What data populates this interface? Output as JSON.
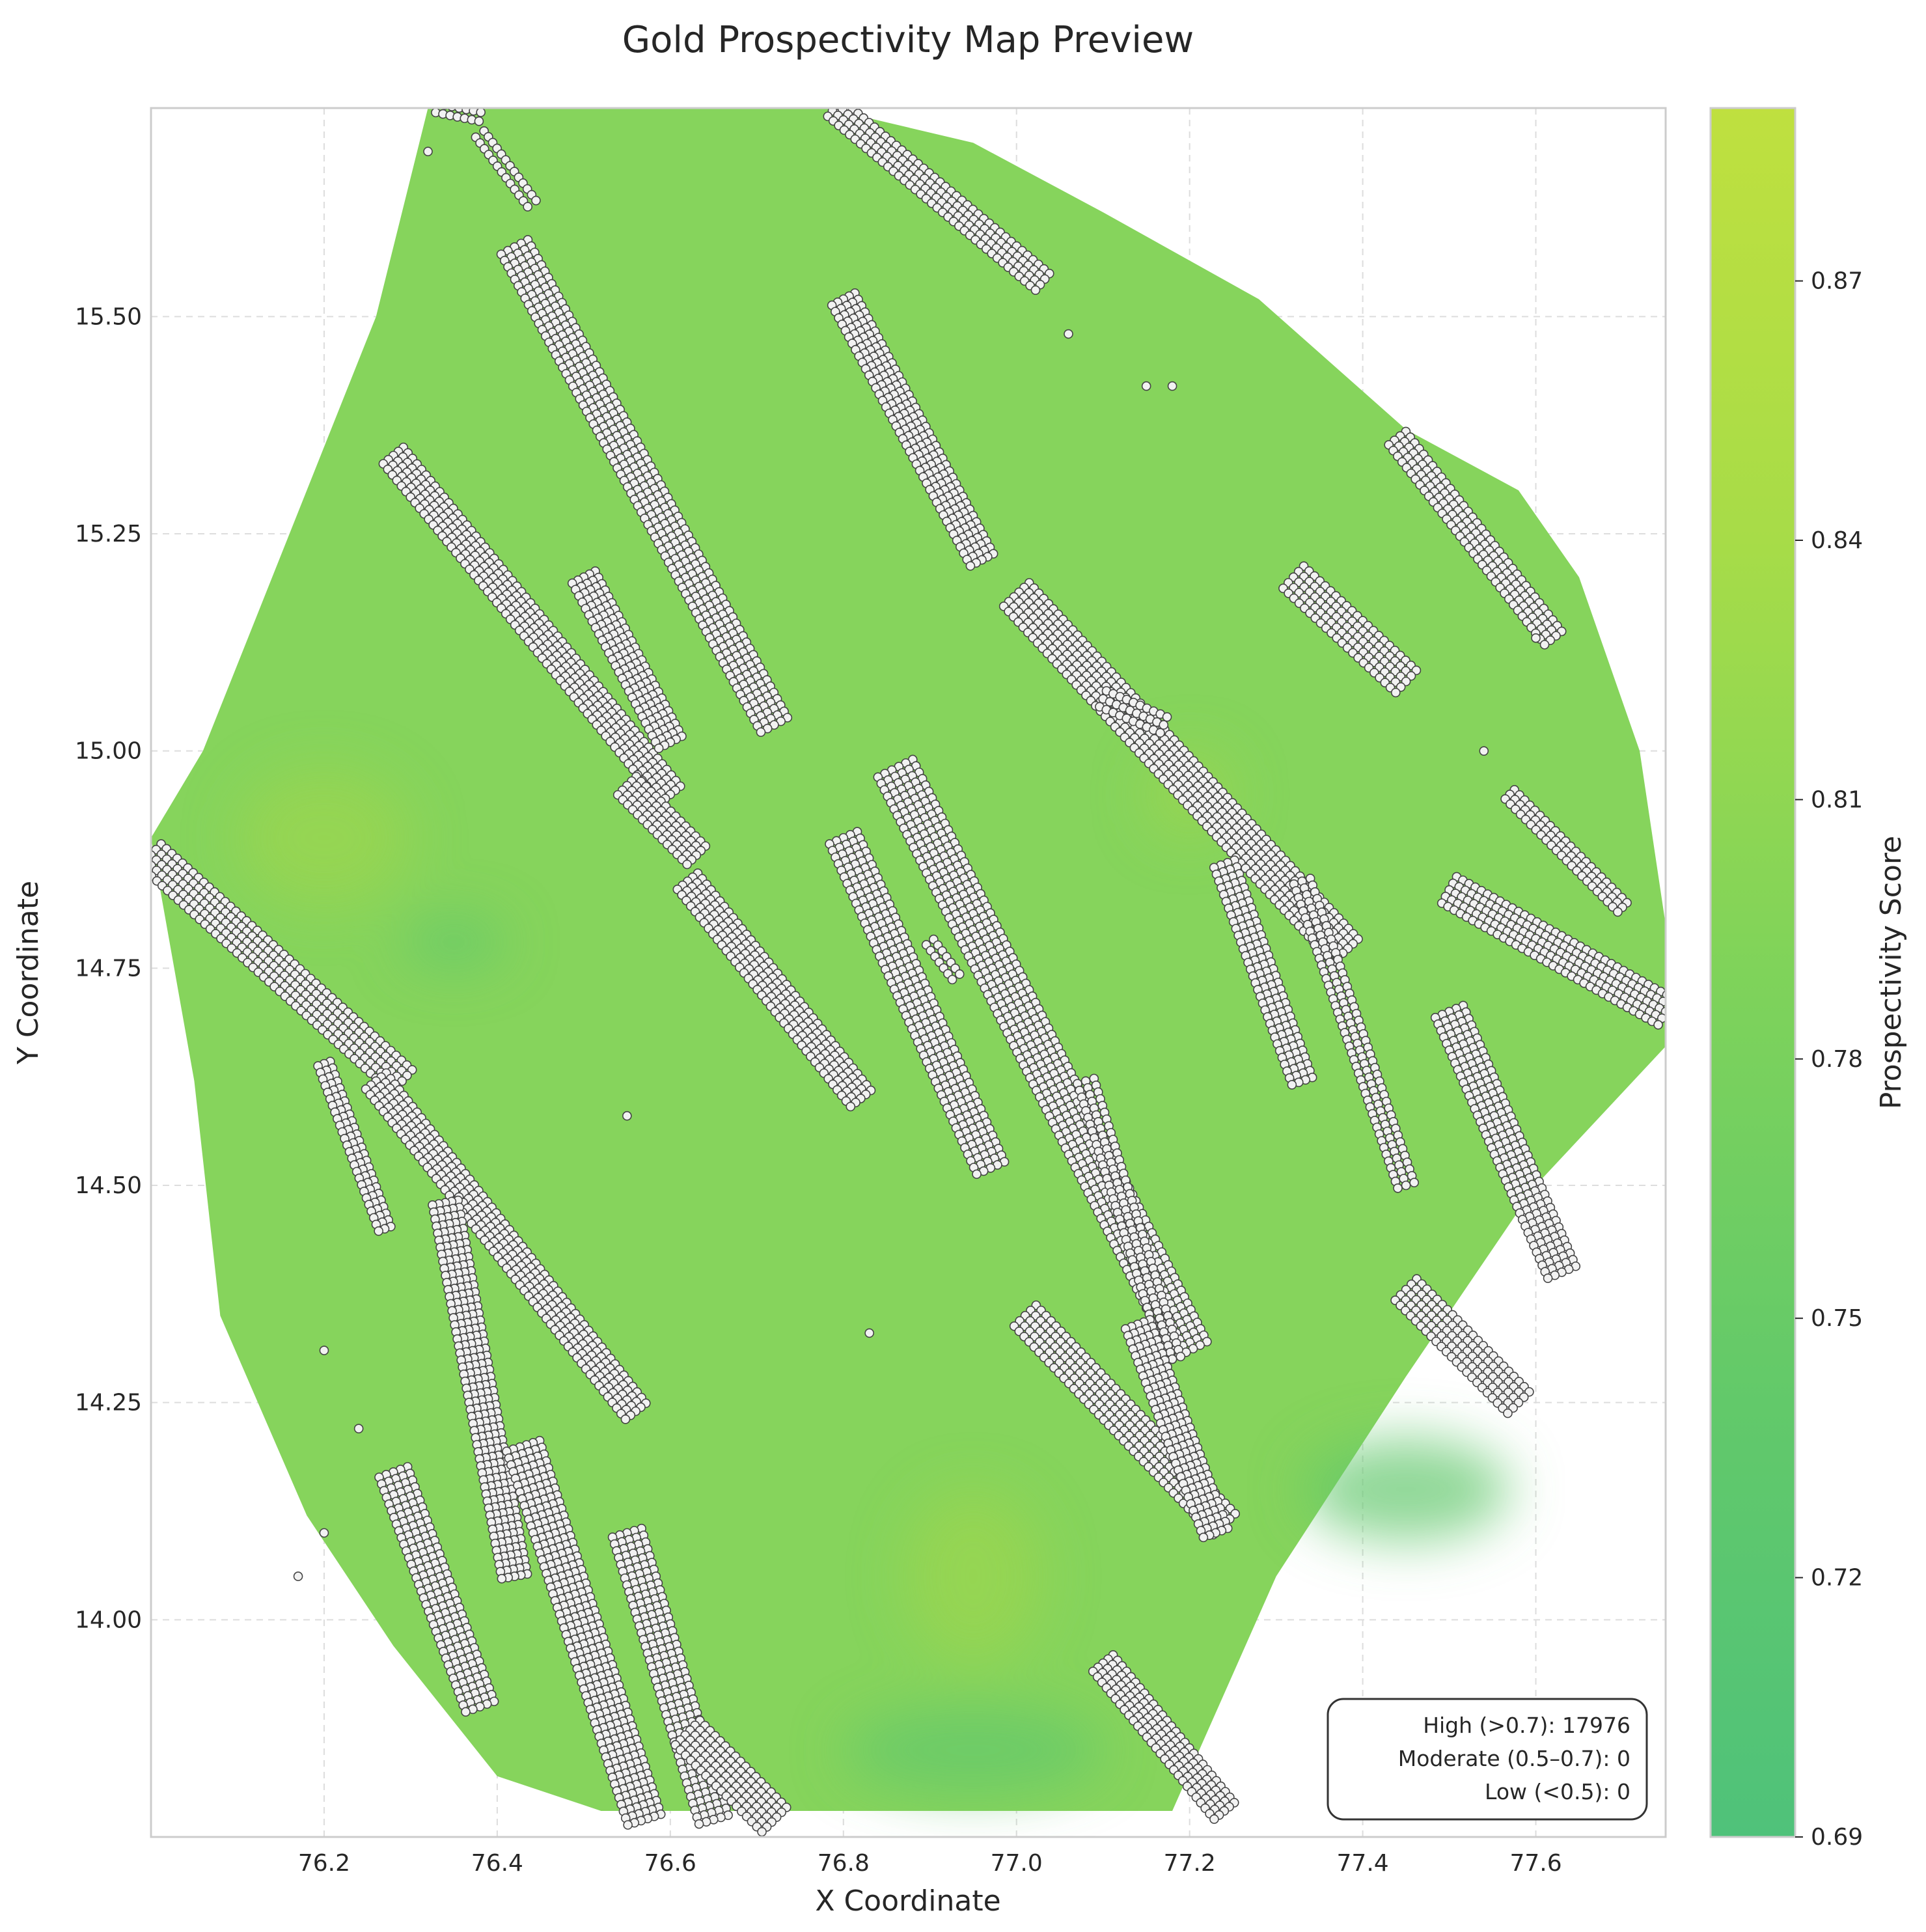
{
  "chart_data": {
    "type": "heatmap",
    "title": "Gold Prospectivity Map Preview",
    "xlabel": "X Coordinate",
    "ylabel": "Y Coordinate",
    "xlim": [
      76.0,
      77.75
    ],
    "ylim": [
      13.75,
      15.74
    ],
    "x_ticks": [
      "76.2",
      "76.4",
      "76.6",
      "76.8",
      "77.0",
      "77.2",
      "77.4",
      "77.6"
    ],
    "y_ticks": [
      "14.00",
      "14.25",
      "14.50",
      "14.75",
      "15.00",
      "15.25",
      "15.50"
    ],
    "grid": true,
    "colorbar": {
      "label": "Prospectivity Score",
      "range": [
        0.69,
        0.89
      ],
      "ticks": [
        "0.69",
        "0.72",
        "0.75",
        "0.78",
        "0.81",
        "0.84",
        "0.87"
      ],
      "colors": [
        "#4fc27a",
        "#62c96a",
        "#7fd35a",
        "#a7dc48",
        "#bfe03f"
      ]
    },
    "field_colors": {
      "base": "#86d45c",
      "low": "#63c76c",
      "high": "#9bd650"
    },
    "survey_boundary": [
      [
        76.32,
        15.74
      ],
      [
        76.44,
        15.74
      ],
      [
        76.78,
        15.74
      ],
      [
        76.95,
        15.7
      ],
      [
        77.1,
        15.62
      ],
      [
        77.28,
        15.52
      ],
      [
        77.45,
        15.37
      ],
      [
        77.58,
        15.3
      ],
      [
        77.65,
        15.2
      ],
      [
        77.72,
        15.0
      ],
      [
        77.75,
        14.8
      ],
      [
        77.75,
        14.66
      ],
      [
        77.6,
        14.5
      ],
      [
        77.45,
        14.28
      ],
      [
        77.3,
        14.05
      ],
      [
        77.18,
        13.78
      ],
      [
        76.7,
        13.78
      ],
      [
        76.52,
        13.78
      ],
      [
        76.4,
        13.82
      ],
      [
        76.28,
        13.97
      ],
      [
        76.18,
        14.12
      ],
      [
        76.08,
        14.35
      ],
      [
        76.05,
        14.62
      ],
      [
        76.0,
        14.9
      ],
      [
        76.06,
        15.0
      ],
      [
        76.12,
        15.15
      ],
      [
        76.2,
        15.35
      ],
      [
        76.26,
        15.5
      ]
    ],
    "point_color": "#f2f2f2",
    "point_edge_color": "#444444",
    "mineralization_trends": [
      {
        "start": [
          76.33,
          15.74
        ],
        "end": [
          76.38,
          15.73
        ],
        "width": 0.01
      },
      {
        "start": [
          76.38,
          15.71
        ],
        "end": [
          76.44,
          15.63
        ],
        "width": 0.012
      },
      {
        "start": [
          76.42,
          15.58
        ],
        "end": [
          76.72,
          15.03
        ],
        "width": 0.035
      },
      {
        "start": [
          76.79,
          15.74
        ],
        "end": [
          77.03,
          15.54
        ],
        "width": 0.025
      },
      {
        "start": [
          76.8,
          15.52
        ],
        "end": [
          76.96,
          15.22
        ],
        "width": 0.03
      },
      {
        "start": [
          76.28,
          15.34
        ],
        "end": [
          76.6,
          14.95
        ],
        "width": 0.03
      },
      {
        "start": [
          76.5,
          15.2
        ],
        "end": [
          76.6,
          15.01
        ],
        "width": 0.03
      },
      {
        "start": [
          76.55,
          14.96
        ],
        "end": [
          76.63,
          14.88
        ],
        "width": 0.03
      },
      {
        "start": [
          76.0,
          14.88
        ],
        "end": [
          76.29,
          14.62
        ],
        "width": 0.035
      },
      {
        "start": [
          76.2,
          14.64
        ],
        "end": [
          76.27,
          14.45
        ],
        "width": 0.015
      },
      {
        "start": [
          76.26,
          14.62
        ],
        "end": [
          76.56,
          14.24
        ],
        "width": 0.03
      },
      {
        "start": [
          76.34,
          14.48
        ],
        "end": [
          76.42,
          14.05
        ],
        "width": 0.03
      },
      {
        "start": [
          76.43,
          14.2
        ],
        "end": [
          76.57,
          13.77
        ],
        "width": 0.04
      },
      {
        "start": [
          76.28,
          14.17
        ],
        "end": [
          76.38,
          13.9
        ],
        "width": 0.035
      },
      {
        "start": [
          76.55,
          14.1
        ],
        "end": [
          76.65,
          13.77
        ],
        "width": 0.035
      },
      {
        "start": [
          76.62,
          13.87
        ],
        "end": [
          76.72,
          13.77
        ],
        "width": 0.04
      },
      {
        "start": [
          76.62,
          14.85
        ],
        "end": [
          76.82,
          14.6
        ],
        "width": 0.03
      },
      {
        "start": [
          76.8,
          14.9
        ],
        "end": [
          76.97,
          14.52
        ],
        "width": 0.035
      },
      {
        "start": [
          76.86,
          14.98
        ],
        "end": [
          77.2,
          14.31
        ],
        "width": 0.045
      },
      {
        "start": [
          77.0,
          15.18
        ],
        "end": [
          77.38,
          14.77
        ],
        "width": 0.04
      },
      {
        "start": [
          77.08,
          14.62
        ],
        "end": [
          77.18,
          14.3
        ],
        "width": 0.02
      },
      {
        "start": [
          77.01,
          14.35
        ],
        "end": [
          77.24,
          14.11
        ],
        "width": 0.035
      },
      {
        "start": [
          77.14,
          14.34
        ],
        "end": [
          77.23,
          14.1
        ],
        "width": 0.03
      },
      {
        "start": [
          77.1,
          13.95
        ],
        "end": [
          77.24,
          13.78
        ],
        "width": 0.03
      },
      {
        "start": [
          77.32,
          15.2
        ],
        "end": [
          77.45,
          15.08
        ],
        "width": 0.035
      },
      {
        "start": [
          77.44,
          15.36
        ],
        "end": [
          77.62,
          15.13
        ],
        "width": 0.025
      },
      {
        "start": [
          77.24,
          14.87
        ],
        "end": [
          77.33,
          14.62
        ],
        "width": 0.025
      },
      {
        "start": [
          77.33,
          14.85
        ],
        "end": [
          77.45,
          14.5
        ],
        "width": 0.02
      },
      {
        "start": [
          77.5,
          14.84
        ],
        "end": [
          77.75,
          14.7
        ],
        "width": 0.035
      },
      {
        "start": [
          77.5,
          14.7
        ],
        "end": [
          77.63,
          14.4
        ],
        "width": 0.035
      },
      {
        "start": [
          77.45,
          14.38
        ],
        "end": [
          77.58,
          14.25
        ],
        "width": 0.035
      },
      {
        "start": [
          77.57,
          14.95
        ],
        "end": [
          77.7,
          14.82
        ],
        "width": 0.015
      },
      {
        "start": [
          77.1,
          15.06
        ],
        "end": [
          77.17,
          15.03
        ],
        "width": 0.02
      },
      {
        "start": [
          76.9,
          14.78
        ],
        "end": [
          76.93,
          14.74
        ],
        "width": 0.01
      }
    ],
    "isolated_points": [
      [
        76.32,
        15.69
      ],
      [
        76.55,
        14.58
      ],
      [
        76.83,
        14.33
      ],
      [
        77.06,
        15.48
      ],
      [
        77.15,
        15.42
      ],
      [
        77.18,
        15.42
      ],
      [
        77.54,
        15.0
      ],
      [
        77.6,
        15.13
      ],
      [
        76.2,
        14.31
      ],
      [
        76.24,
        14.22
      ],
      [
        76.2,
        14.1
      ],
      [
        76.17,
        14.05
      ]
    ]
  },
  "stats": {
    "high": "High (>0.7): 17976",
    "moderate": "Moderate (0.5–0.7): 0",
    "low": "Low (<0.5): 0"
  }
}
